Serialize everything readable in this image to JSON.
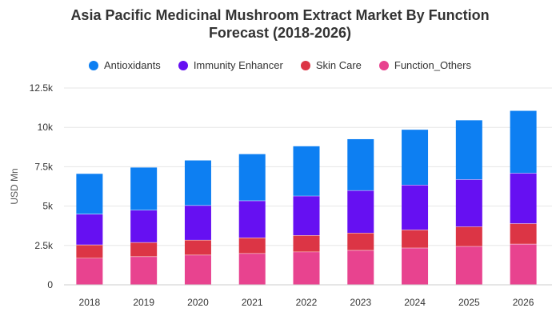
{
  "chart_data": {
    "type": "bar",
    "stacked": true,
    "title_lines": [
      "Asia Pacific Medicinal Mushroom Extract Market By Function",
      "Forecast (2018-2026)"
    ],
    "title": "Asia Pacific Medicinal Mushroom Extract Market By Function Forecast (2018-2026)",
    "xlabel": "",
    "ylabel": "USD Mn",
    "ylim": [
      0,
      12500
    ],
    "yticks": [
      0,
      2500,
      5000,
      7500,
      10000,
      12500
    ],
    "ytick_labels": [
      "0",
      "2.5k",
      "5k",
      "7.5k",
      "10k",
      "12.5k"
    ],
    "categories": [
      "2018",
      "2019",
      "2020",
      "2021",
      "2022",
      "2023",
      "2024",
      "2025",
      "2026"
    ],
    "grid": true,
    "legend_position": "top-center",
    "series": [
      {
        "name": "Function_Others",
        "color": "#e8438f",
        "values": [
          1700,
          1800,
          1900,
          2000,
          2100,
          2200,
          2350,
          2450,
          2600
        ]
      },
      {
        "name": "Skin Care",
        "color": "#dc3545",
        "values": [
          850,
          900,
          950,
          1000,
          1050,
          1100,
          1150,
          1250,
          1300
        ]
      },
      {
        "name": "Immunity Enhancer",
        "color": "#6610f2",
        "values": [
          1950,
          2050,
          2200,
          2350,
          2500,
          2700,
          2850,
          3000,
          3200
        ]
      },
      {
        "name": "Antioxidants",
        "color": "#0d7ff2",
        "values": [
          2550,
          2700,
          2850,
          2950,
          3150,
          3250,
          3500,
          3750,
          3950
        ]
      }
    ],
    "legend_order": [
      "Antioxidants",
      "Immunity Enhancer",
      "Skin Care",
      "Function_Others"
    ]
  }
}
